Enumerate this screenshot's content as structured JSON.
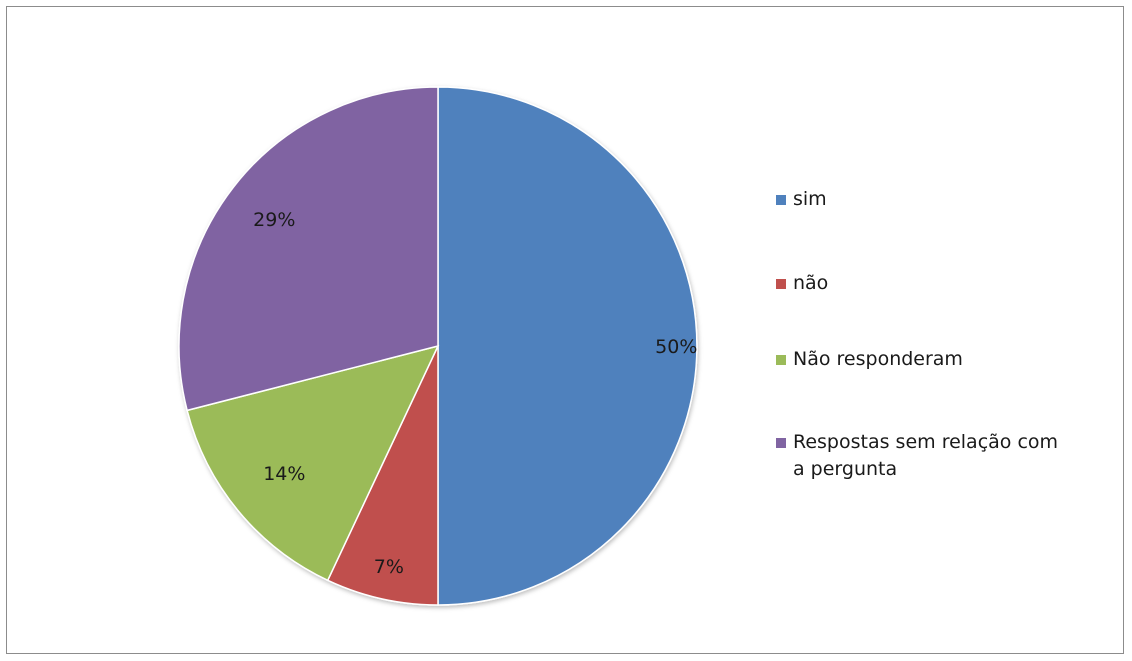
{
  "chart_data": {
    "type": "pie",
    "categories": [
      "sim",
      "não",
      "Não responderam",
      "Respostas sem relação com a pergunta"
    ],
    "values": [
      50,
      7,
      14,
      29
    ],
    "labels": [
      "50%",
      "7%",
      "14%",
      "29%"
    ],
    "colors": [
      "#4f81bd",
      "#c0504d",
      "#9bbb59",
      "#8064a2"
    ],
    "legend": "right"
  }
}
